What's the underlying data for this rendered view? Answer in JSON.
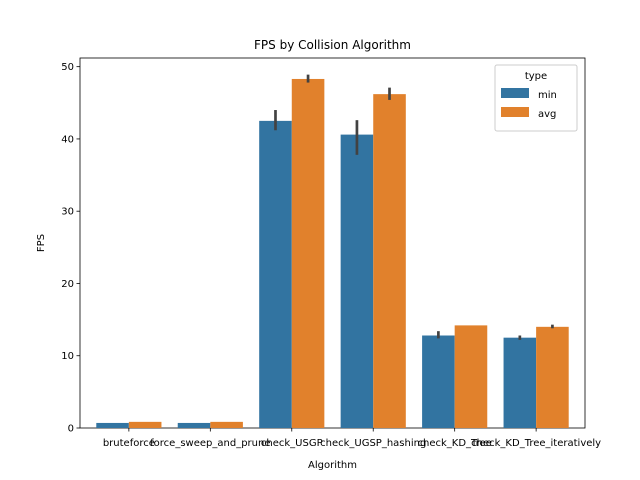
{
  "chart_data": {
    "type": "bar",
    "title": "FPS by Collision Algorithm",
    "xlabel": "Algorithm",
    "ylabel": "FPS",
    "ylim": [
      0,
      51.2
    ],
    "yticks": [
      0,
      10,
      20,
      30,
      40,
      50
    ],
    "categories": [
      "bruteforce",
      "force_sweep_and_prune",
      "check_USGP",
      "check_UGSP_hashing",
      "check_KD_Tree",
      "check_KD_Tree_iteratively"
    ],
    "series": [
      {
        "name": "min",
        "color": "#3274a1",
        "values": [
          0.7,
          0.7,
          42.5,
          40.6,
          12.8,
          12.5
        ],
        "err_low": [
          0.7,
          0.7,
          41.2,
          37.8,
          12.4,
          12.2
        ],
        "err_high": [
          0.7,
          0.7,
          44.0,
          42.6,
          13.4,
          12.8
        ]
      },
      {
        "name": "avg",
        "color": "#e1812c",
        "values": [
          0.85,
          0.85,
          48.3,
          46.2,
          14.2,
          14.0
        ],
        "err_low": [
          0.85,
          0.85,
          47.8,
          45.4,
          14.2,
          13.8
        ],
        "err_high": [
          0.85,
          0.85,
          48.9,
          47.1,
          14.2,
          14.3
        ]
      }
    ],
    "legend": {
      "title": "type",
      "position": "top-right"
    },
    "grid": false
  }
}
